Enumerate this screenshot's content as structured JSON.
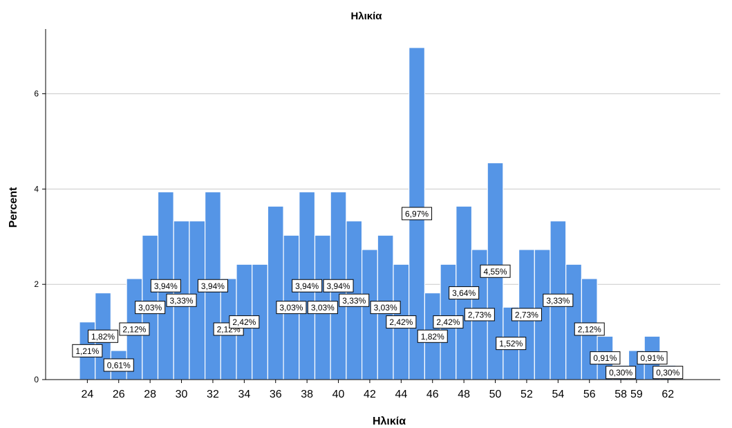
{
  "chart_data": {
    "type": "bar",
    "title": "Ηλικία",
    "xlabel": "Ηλικία",
    "ylabel": "Percent",
    "ylim": [
      0,
      7.2
    ],
    "yticks": [
      "0",
      "2",
      "4",
      "6"
    ],
    "grid": "horizontal",
    "bar_color": "#5595e6",
    "categories": [
      "24",
      "25",
      "26",
      "27",
      "28",
      "29",
      "30",
      "31",
      "32",
      "33",
      "34",
      "35",
      "36",
      "37",
      "38",
      "39",
      "40",
      "41",
      "42",
      "43",
      "44",
      "45",
      "46",
      "47",
      "48",
      "49",
      "50",
      "51",
      "52",
      "53",
      "54",
      "55",
      "56",
      "57",
      "58",
      "59",
      "60",
      "62"
    ],
    "values": [
      1.21,
      1.82,
      0.61,
      2.12,
      3.03,
      3.94,
      3.33,
      3.33,
      3.94,
      2.12,
      2.42,
      2.42,
      3.64,
      3.03,
      3.94,
      3.03,
      3.94,
      3.33,
      2.73,
      3.03,
      2.42,
      6.97,
      1.82,
      2.42,
      3.64,
      2.73,
      4.55,
      1.52,
      2.73,
      2.73,
      3.33,
      2.42,
      2.12,
      0.91,
      0.3,
      0.61,
      0.91,
      0.3
    ],
    "x_tick_labels": [
      "24",
      "26",
      "28",
      "30",
      "32",
      "34",
      "36",
      "38",
      "40",
      "42",
      "44",
      "46",
      "48",
      "50",
      "52",
      "54",
      "56",
      "58",
      "59",
      "62"
    ],
    "data_labels": [
      {
        "bar": 0,
        "text": "1,21%"
      },
      {
        "bar": 1,
        "text": "1,82%"
      },
      {
        "bar": 2,
        "text": "0,61%"
      },
      {
        "bar": 3,
        "text": "2,12%"
      },
      {
        "bar": 4,
        "text": "3,03%"
      },
      {
        "bar": 5,
        "text": "3,94%"
      },
      {
        "bar": 6,
        "text": "3,33%"
      },
      {
        "bar": 8,
        "text": "3,94%"
      },
      {
        "bar": 9,
        "text": "2,12%"
      },
      {
        "bar": 10,
        "text": "2,42%"
      },
      {
        "bar": 13,
        "text": "3,03%"
      },
      {
        "bar": 14,
        "text": "3,94%"
      },
      {
        "bar": 15,
        "text": "3,03%"
      },
      {
        "bar": 16,
        "text": "3,94%"
      },
      {
        "bar": 17,
        "text": "3,33%"
      },
      {
        "bar": 19,
        "text": "3,03%"
      },
      {
        "bar": 20,
        "text": "2,42%"
      },
      {
        "bar": 21,
        "text": "6,97%"
      },
      {
        "bar": 22,
        "text": "1,82%"
      },
      {
        "bar": 23,
        "text": "2,42%"
      },
      {
        "bar": 24,
        "text": "3,64%"
      },
      {
        "bar": 25,
        "text": "2,73%"
      },
      {
        "bar": 26,
        "text": "4,55%"
      },
      {
        "bar": 27,
        "text": "1,52%"
      },
      {
        "bar": 28,
        "text": "2,73%"
      },
      {
        "bar": 30,
        "text": "3,33%"
      },
      {
        "bar": 32,
        "text": "2,12%"
      },
      {
        "bar": 33,
        "text": "0,91%"
      },
      {
        "bar": 34,
        "text": "0,30%"
      },
      {
        "bar": 36,
        "text": "0,91%"
      },
      {
        "bar": 37,
        "text": "0,30%"
      }
    ]
  }
}
